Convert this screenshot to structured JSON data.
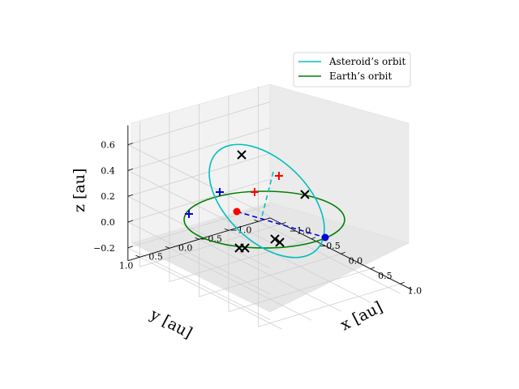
{
  "chart_data": {
    "type": "line3d",
    "title": "",
    "xlabel": "x [au]",
    "ylabel": "y [au]",
    "zlabel": "z [au]",
    "x_ticks": [
      "−1.0",
      "−0.5",
      "0.0",
      "0.5",
      "1.0"
    ],
    "y_ticks": [
      "1.0",
      "0.5",
      "0.0",
      "−0.5",
      "−1.0"
    ],
    "z_ticks": [
      "0.6",
      "0.4",
      "0.2",
      "0.0",
      "−0.2"
    ],
    "xlim": [
      -1.2,
      1.2
    ],
    "ylim": [
      -1.2,
      1.2
    ],
    "zlim": [
      -0.3,
      0.75
    ],
    "grid": true,
    "legend_position": "top-right",
    "legend": [
      {
        "label": "Asteroid’s orbit",
        "color": "#00bfbf"
      },
      {
        "label": "Earth’s orbit",
        "color": "#008000"
      }
    ],
    "series": [
      {
        "name": "Asteroid’s orbit",
        "color": "#00bfbf",
        "style": "solid",
        "points": [
          [
            -0.55,
            0.95,
            0.58
          ],
          [
            -0.2,
            0.6,
            0.62
          ],
          [
            0.25,
            0.1,
            0.45
          ],
          [
            0.6,
            -0.4,
            0.2
          ],
          [
            0.75,
            -0.75,
            -0.05
          ],
          [
            0.6,
            -0.9,
            -0.2
          ],
          [
            0.2,
            -0.85,
            -0.28
          ],
          [
            -0.25,
            -0.5,
            -0.15
          ],
          [
            -0.6,
            0.1,
            0.1
          ],
          [
            -0.75,
            0.6,
            0.35
          ]
        ]
      },
      {
        "name": "Earth’s orbit",
        "color": "#008000",
        "style": "solid",
        "points": [
          [
            1.0,
            0.0,
            0.0
          ],
          [
            0.71,
            0.71,
            0.0
          ],
          [
            0.0,
            1.0,
            0.0
          ],
          [
            -0.71,
            0.71,
            0.0
          ],
          [
            -1.0,
            0.0,
            0.0
          ],
          [
            -0.71,
            -0.71,
            0.0
          ],
          [
            0.0,
            -1.0,
            0.0
          ],
          [
            0.71,
            -0.71,
            0.0
          ]
        ]
      }
    ],
    "markers": [
      {
        "kind": "point",
        "color": "#ff0000"
      },
      {
        "kind": "point",
        "color": "#0000dd"
      },
      {
        "kind": "plus",
        "color": "#ff0000"
      },
      {
        "kind": "plus",
        "color": "#ff0000"
      },
      {
        "kind": "plus",
        "color": "#0000dd"
      },
      {
        "kind": "plus",
        "color": "#0000dd"
      },
      {
        "kind": "cross",
        "color": "#000000"
      },
      {
        "kind": "cross",
        "color": "#000000"
      },
      {
        "kind": "cross",
        "color": "#000000"
      },
      {
        "kind": "cross",
        "color": "#000000"
      },
      {
        "kind": "cross",
        "color": "#000000"
      },
      {
        "kind": "cross",
        "color": "#000000"
      }
    ]
  }
}
